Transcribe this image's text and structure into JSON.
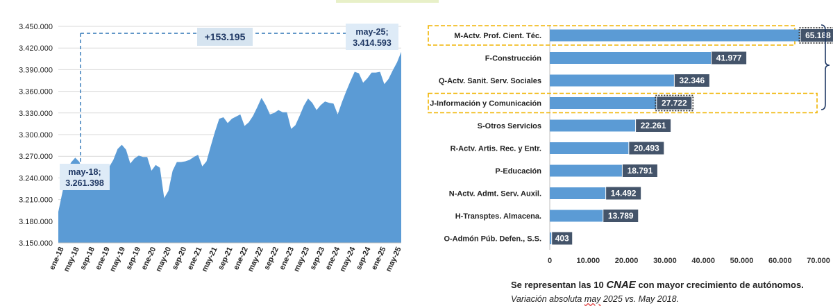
{
  "left_chart": {
    "chart_data": {
      "type": "area",
      "color": "#5b9bd5",
      "ylim": [
        3150000,
        3450000
      ],
      "yticks": [
        "3.150.000",
        "3.180.000",
        "3.210.000",
        "3.240.000",
        "3.270.000",
        "3.300.000",
        "3.330.000",
        "3.360.000",
        "3.390.000",
        "3.420.000",
        "3.450.000"
      ],
      "ytick_values": [
        3150000,
        3180000,
        3210000,
        3240000,
        3270000,
        3300000,
        3330000,
        3360000,
        3390000,
        3420000,
        3450000
      ],
      "xticks": [
        "ene-18",
        "may-18",
        "sep-18",
        "ene-19",
        "may-19",
        "sep-19",
        "ene-20",
        "may-20",
        "sep-20",
        "ene-21",
        "may-21",
        "sep-21",
        "ene-22",
        "may-22",
        "sep-22",
        "ene-23",
        "may-23",
        "sep-23",
        "ene-24",
        "may-24",
        "sep-24",
        "ene-25",
        "may-25"
      ],
      "values": [
        3193000,
        3221000,
        3248000,
        3261398,
        3268000,
        3262000,
        3242000,
        3255000,
        3254000,
        3253000,
        3250000,
        3251000,
        3255000,
        3265000,
        3280000,
        3286000,
        3279000,
        3260000,
        3267000,
        3271000,
        3269000,
        3269000,
        3250000,
        3258000,
        3254000,
        3212000,
        3222000,
        3250000,
        3262000,
        3262000,
        3263000,
        3265000,
        3269000,
        3272000,
        3256000,
        3263000,
        3284000,
        3304000,
        3322000,
        3324000,
        3316000,
        3322000,
        3325000,
        3328000,
        3312000,
        3317000,
        3326000,
        3338000,
        3351000,
        3341000,
        3328000,
        3330000,
        3334000,
        3331000,
        3331000,
        3308000,
        3313000,
        3326000,
        3340000,
        3350000,
        3344000,
        3334000,
        3341000,
        3346000,
        3344000,
        3343000,
        3328000,
        3345000,
        3360000,
        3374000,
        3387000,
        3385000,
        3372000,
        3378000,
        3386000,
        3386000,
        3387000,
        3370000,
        3377000,
        3389000,
        3400000,
        3414593
      ]
    },
    "annotations": {
      "start_date": "may-18;",
      "start_value": "3.261.398",
      "end_date": "may-25;",
      "end_value": "3.414.593",
      "delta": "+153.195"
    }
  },
  "right_chart": {
    "chart_data": {
      "type": "bar",
      "orientation": "horizontal",
      "color": "#5b9bd5",
      "categories": [
        "M-Actv. Prof. Cient. Téc.",
        "F-Construcción",
        "Q-Actv. Sanit. Serv. Sociales",
        "J-Información y Comunicación",
        "S-Otros Servicios",
        "R-Actv. Artis. Rec. y Entr.",
        "P-Educación",
        "N-Actv. Admt. Serv. Auxil.",
        "H-Transptes. Almacena.",
        "O-Admón Púb. Defen., S.S."
      ],
      "values": [
        65188,
        41977,
        32346,
        27722,
        22261,
        20493,
        18791,
        14492,
        13789,
        403
      ],
      "value_labels": [
        "65.188",
        "41.977",
        "32.346",
        "27.722",
        "22.261",
        "20.493",
        "18.791",
        "14.492",
        "13.789",
        "403"
      ],
      "highlighted": [
        0,
        3
      ],
      "xlim": [
        0,
        75000
      ],
      "xticks": [
        "0",
        "10.000",
        "20.000",
        "30.000",
        "40.000",
        "50.000",
        "60.000",
        "70.000"
      ],
      "xtick_values": [
        0,
        10000,
        20000,
        30000,
        40000,
        50000,
        60000,
        70000
      ]
    }
  },
  "caption": {
    "line1_prefix": "Se representan las 10 ",
    "line1_cnae": "CNAE",
    "line1_suffix": " con mayor crecimiento de autónomos.",
    "line2_prefix": "Variación absoluta ",
    "line2_may": "may",
    "line2_suffix": " 2025 vs. May 2018."
  }
}
